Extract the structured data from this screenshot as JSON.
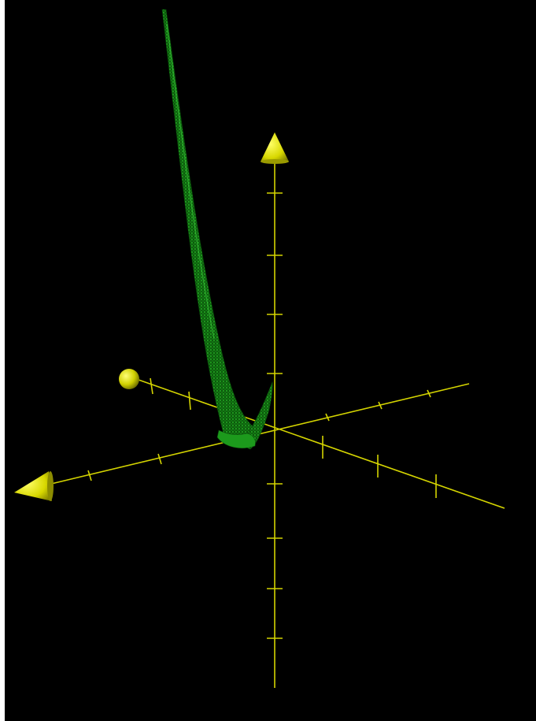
{
  "colors": {
    "background": "#000000",
    "axis": "#d4d400",
    "axis_head": "#e6e600",
    "axis_head_shade": "#8c8c00",
    "surface": "#1fa51f",
    "surface_mesh": "#0b4f0b",
    "surface_highlight": "#4fd84f"
  },
  "scene": {
    "type": "3d-surface-plot",
    "axes": [
      {
        "name": "z-axis",
        "head": "cone",
        "tick_count": 5,
        "negative_tick_count": 4
      },
      {
        "name": "x-axis",
        "head": "cone",
        "tick_count": 4,
        "negative_tick_count": 3
      },
      {
        "name": "y-axis",
        "head": "sphere",
        "tick_count": 3,
        "negative_tick_count": 3
      }
    ],
    "surface": {
      "shape": "parabolic-sheet",
      "description_visible": false
    }
  }
}
